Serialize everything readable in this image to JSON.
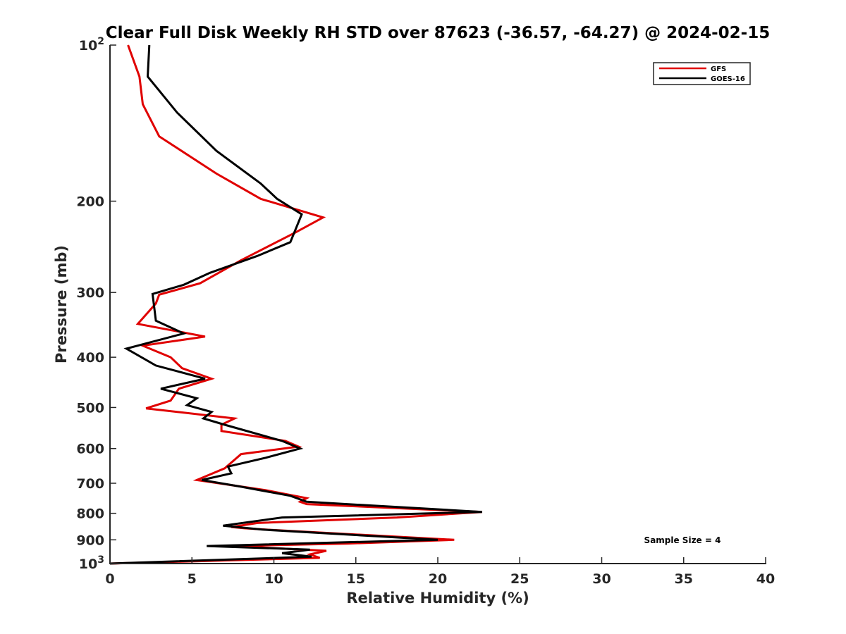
{
  "chart_data": {
    "type": "line",
    "title": "Clear Full Disk Weekly RH STD over 87623 (-36.57, -64.27) @ 2024-02-15",
    "xlabel": "Relative Humidity (%)",
    "ylabel": "Pressure (mb)",
    "xlim": [
      0,
      40
    ],
    "ylim": [
      100,
      1000
    ],
    "y_scale": "log",
    "y_reversed": true,
    "grid": false,
    "legend_position": "top-right",
    "x_ticks": [
      {
        "value": 0,
        "label": "0"
      },
      {
        "value": 5,
        "label": "5"
      },
      {
        "value": 10,
        "label": "10"
      },
      {
        "value": 15,
        "label": "15"
      },
      {
        "value": 20,
        "label": "20"
      },
      {
        "value": 25,
        "label": "25"
      },
      {
        "value": 30,
        "label": "30"
      },
      {
        "value": 35,
        "label": "35"
      },
      {
        "value": 40,
        "label": "40"
      }
    ],
    "y_ticks": [
      {
        "value": 100,
        "base": "10",
        "exp": "2"
      },
      {
        "value": 200,
        "label": "200"
      },
      {
        "value": 300,
        "label": "300"
      },
      {
        "value": 400,
        "label": "400"
      },
      {
        "value": 500,
        "label": "500"
      },
      {
        "value": 600,
        "label": "600"
      },
      {
        "value": 700,
        "label": "700"
      },
      {
        "value": 800,
        "label": "800"
      },
      {
        "value": 900,
        "label": "900"
      },
      {
        "value": 1000,
        "base": "10",
        "exp": "3"
      }
    ],
    "series": [
      {
        "name": "GFS",
        "color": "#e00000",
        "points": [
          [
            1.1,
            100
          ],
          [
            1.8,
            115
          ],
          [
            2.0,
            130
          ],
          [
            3.0,
            150
          ],
          [
            6.5,
            177
          ],
          [
            9.2,
            198
          ],
          [
            13.0,
            215
          ],
          [
            11.3,
            230
          ],
          [
            8.0,
            260
          ],
          [
            5.5,
            288
          ],
          [
            3.0,
            303
          ],
          [
            2.8,
            315
          ],
          [
            1.7,
            345
          ],
          [
            5.8,
            365
          ],
          [
            2.0,
            380
          ],
          [
            3.7,
            400
          ],
          [
            4.4,
            420
          ],
          [
            6.2,
            440
          ],
          [
            4.2,
            460
          ],
          [
            3.7,
            485
          ],
          [
            2.2,
            502
          ],
          [
            7.6,
            525
          ],
          [
            6.8,
            540
          ],
          [
            6.8,
            555
          ],
          [
            10.7,
            580
          ],
          [
            11.5,
            595
          ],
          [
            8.0,
            615
          ],
          [
            7.0,
            655
          ],
          [
            5.3,
            690
          ],
          [
            9.5,
            722
          ],
          [
            12.0,
            748
          ],
          [
            11.6,
            760
          ],
          [
            12.0,
            768
          ],
          [
            22.7,
            795
          ],
          [
            17.5,
            815
          ],
          [
            9.0,
            835
          ],
          [
            7.4,
            850
          ],
          [
            8.2,
            855
          ],
          [
            9.5,
            860
          ],
          [
            21.0,
            900
          ],
          [
            14.5,
            915
          ],
          [
            7.5,
            925
          ],
          [
            13.2,
            945
          ],
          [
            12.2,
            960
          ],
          [
            12.5,
            968
          ],
          [
            12.8,
            975
          ],
          [
            0.0,
            1000
          ]
        ]
      },
      {
        "name": "GOES-16",
        "color": "#000000",
        "points": [
          [
            2.4,
            100
          ],
          [
            2.3,
            115
          ],
          [
            4.1,
            135
          ],
          [
            6.5,
            160
          ],
          [
            9.2,
            185
          ],
          [
            10.2,
            198
          ],
          [
            11.7,
            212
          ],
          [
            11.0,
            240
          ],
          [
            9.0,
            255
          ],
          [
            6.1,
            275
          ],
          [
            4.5,
            290
          ],
          [
            2.6,
            302
          ],
          [
            2.8,
            340
          ],
          [
            4.5,
            360
          ],
          [
            1.0,
            385
          ],
          [
            2.8,
            415
          ],
          [
            5.8,
            440
          ],
          [
            3.1,
            460
          ],
          [
            5.3,
            480
          ],
          [
            4.7,
            495
          ],
          [
            6.2,
            510
          ],
          [
            5.7,
            525
          ],
          [
            7.0,
            540
          ],
          [
            10.5,
            580
          ],
          [
            11.6,
            600
          ],
          [
            9.5,
            625
          ],
          [
            7.2,
            650
          ],
          [
            7.4,
            670
          ],
          [
            5.6,
            690
          ],
          [
            7.9,
            710
          ],
          [
            11.0,
            740
          ],
          [
            12.0,
            760
          ],
          [
            22.7,
            795
          ],
          [
            10.5,
            815
          ],
          [
            6.9,
            845
          ],
          [
            9.3,
            860
          ],
          [
            20.0,
            900
          ],
          [
            5.9,
            925
          ],
          [
            12.2,
            940
          ],
          [
            10.5,
            955
          ],
          [
            12.3,
            970
          ],
          [
            0.0,
            1000
          ]
        ]
      }
    ],
    "annotation": "Sample Size = 4"
  }
}
